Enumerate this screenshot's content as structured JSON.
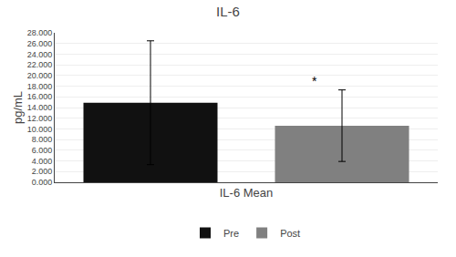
{
  "chart_data": {
    "type": "bar",
    "title": "IL-6",
    "xlabel": "IL-6 Mean",
    "ylabel": "pg/mL",
    "categories": [
      "Pre",
      "Post"
    ],
    "values": [
      14900,
      10600
    ],
    "errors": [
      11600,
      6700
    ],
    "colors": [
      "#111111",
      "#808080"
    ],
    "ylim": [
      0,
      28000
    ],
    "yticks": [
      {
        "value": 0,
        "label": "0.000"
      },
      {
        "value": 2000,
        "label": "2.000"
      },
      {
        "value": 4000,
        "label": "4.000"
      },
      {
        "value": 6000,
        "label": "6.000"
      },
      {
        "value": 8000,
        "label": "8.000"
      },
      {
        "value": 10000,
        "label": "10.000"
      },
      {
        "value": 12000,
        "label": "12.000"
      },
      {
        "value": 14000,
        "label": "14.000"
      },
      {
        "value": 16000,
        "label": "16.000"
      },
      {
        "value": 18000,
        "label": "18.000"
      },
      {
        "value": 20000,
        "label": "20.000"
      },
      {
        "value": 22000,
        "label": "22.000"
      },
      {
        "value": 24000,
        "label": "24.000"
      },
      {
        "value": 26000,
        "label": "26.000"
      },
      {
        "value": 28000,
        "label": "28.000"
      }
    ],
    "annotations": [
      {
        "text": "*",
        "category": "Post"
      }
    ],
    "grid": true,
    "legend": "bottom",
    "tick_labels": "y"
  }
}
